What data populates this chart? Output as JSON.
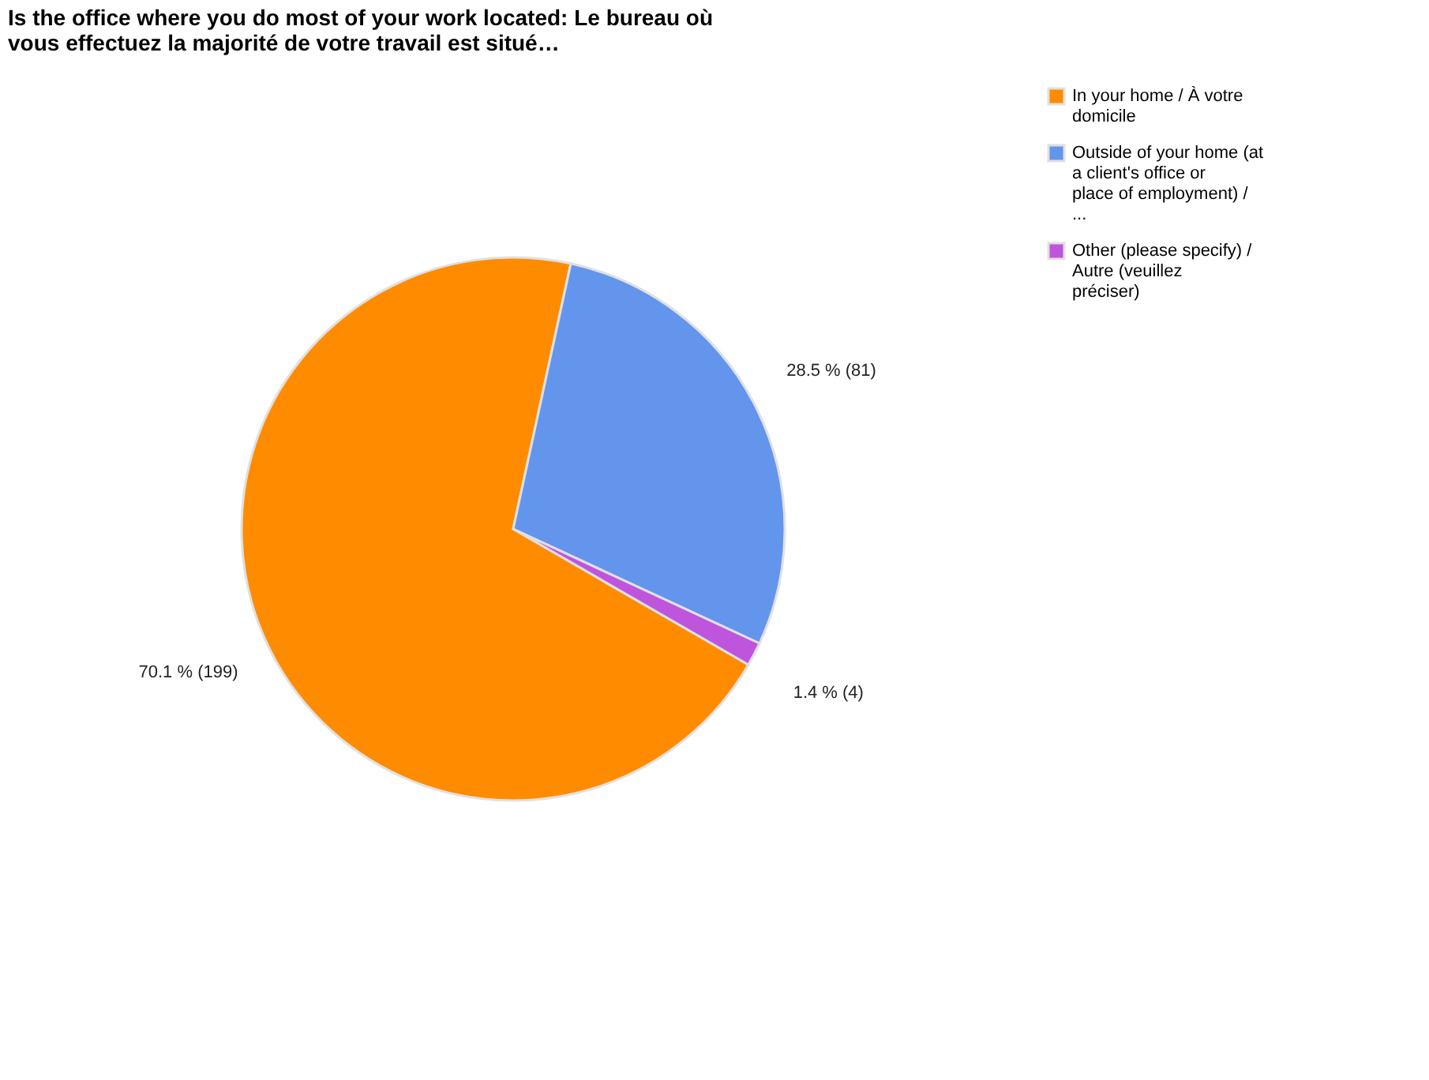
{
  "chart_data": {
    "type": "pie",
    "title": "Is the office where you do most of your work located: Le bureau où vous effectuez la majorité de votre travail est situé…",
    "categories": [
      "In your home / À votre domicile",
      "Outside of your home (at a client's office or place of employment) / ...",
      "Other (please specify) / Autre (veuillez préciser)"
    ],
    "values": [
      199,
      81,
      4
    ],
    "colors": [
      "#ff8c00",
      "#6495ed",
      "#bf55dc"
    ],
    "value_labels": [
      "70.1 % (199)",
      "28.5 % (81)",
      "1.4 % (4)"
    ],
    "legend": "right"
  }
}
